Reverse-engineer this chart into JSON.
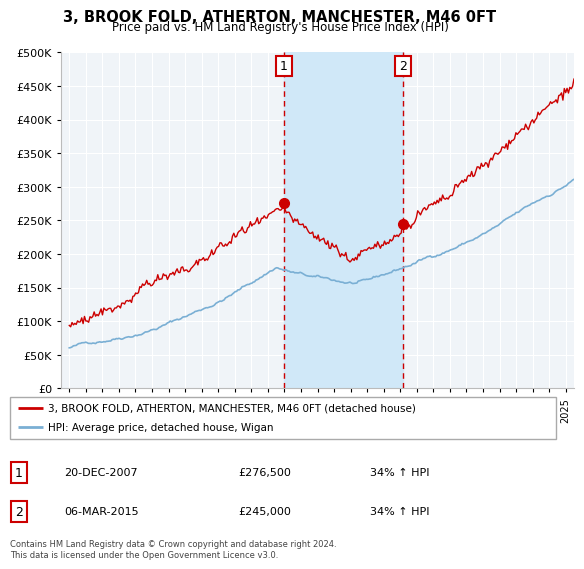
{
  "title": "3, BROOK FOLD, ATHERTON, MANCHESTER, M46 0FT",
  "subtitle": "Price paid vs. HM Land Registry's House Price Index (HPI)",
  "red_legend": "3, BROOK FOLD, ATHERTON, MANCHESTER, M46 0FT (detached house)",
  "blue_legend": "HPI: Average price, detached house, Wigan",
  "sale1_date": "20-DEC-2007",
  "sale1_price": "£276,500",
  "sale1_hpi": "34% ↑ HPI",
  "sale2_date": "06-MAR-2015",
  "sale2_price": "£245,000",
  "sale2_hpi": "34% ↑ HPI",
  "footer": "Contains HM Land Registry data © Crown copyright and database right 2024.\nThis data is licensed under the Open Government Licence v3.0.",
  "ylim": [
    0,
    500000
  ],
  "yticks": [
    0,
    50000,
    100000,
    150000,
    200000,
    250000,
    300000,
    350000,
    400000,
    450000,
    500000
  ],
  "sale1_year": 2007.97,
  "sale2_year": 2015.17,
  "background_color": "#ffffff",
  "plot_bg_color": "#f0f4f8",
  "shade_color": "#d0e8f8",
  "red_color": "#cc0000",
  "blue_color": "#7aafd4",
  "grid_color": "#ffffff",
  "sale1_value": 276500,
  "sale2_value": 245000
}
